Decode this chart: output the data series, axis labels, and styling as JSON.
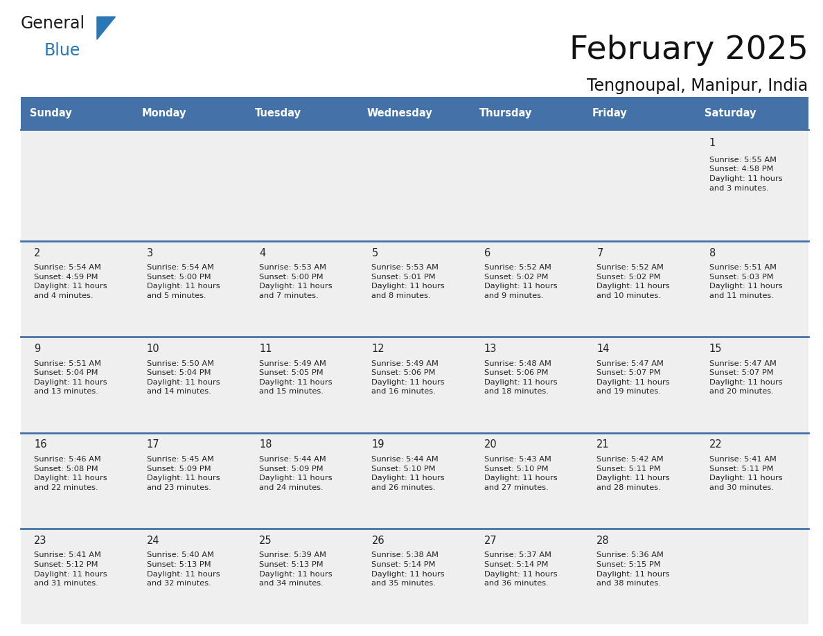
{
  "title": "February 2025",
  "subtitle": "Tengnoupal, Manipur, India",
  "header_bg": "#4472a8",
  "header_text": "#ffffff",
  "day_headers": [
    "Sunday",
    "Monday",
    "Tuesday",
    "Wednesday",
    "Thursday",
    "Friday",
    "Saturday"
  ],
  "row_bg": "#efefef",
  "cell_text_color": "#222222",
  "day_number_color": "#222222",
  "separator_color": "#4472a8",
  "header_fontsize": 10.5,
  "day_num_fontsize": 10.5,
  "info_fontsize": 8.2,
  "title_fontsize": 34,
  "subtitle_fontsize": 17,
  "calendar_data": [
    [
      {
        "day": null,
        "info": null
      },
      {
        "day": null,
        "info": null
      },
      {
        "day": null,
        "info": null
      },
      {
        "day": null,
        "info": null
      },
      {
        "day": null,
        "info": null
      },
      {
        "day": null,
        "info": null
      },
      {
        "day": 1,
        "info": "Sunrise: 5:55 AM\nSunset: 4:58 PM\nDaylight: 11 hours\nand 3 minutes."
      }
    ],
    [
      {
        "day": 2,
        "info": "Sunrise: 5:54 AM\nSunset: 4:59 PM\nDaylight: 11 hours\nand 4 minutes."
      },
      {
        "day": 3,
        "info": "Sunrise: 5:54 AM\nSunset: 5:00 PM\nDaylight: 11 hours\nand 5 minutes."
      },
      {
        "day": 4,
        "info": "Sunrise: 5:53 AM\nSunset: 5:00 PM\nDaylight: 11 hours\nand 7 minutes."
      },
      {
        "day": 5,
        "info": "Sunrise: 5:53 AM\nSunset: 5:01 PM\nDaylight: 11 hours\nand 8 minutes."
      },
      {
        "day": 6,
        "info": "Sunrise: 5:52 AM\nSunset: 5:02 PM\nDaylight: 11 hours\nand 9 minutes."
      },
      {
        "day": 7,
        "info": "Sunrise: 5:52 AM\nSunset: 5:02 PM\nDaylight: 11 hours\nand 10 minutes."
      },
      {
        "day": 8,
        "info": "Sunrise: 5:51 AM\nSunset: 5:03 PM\nDaylight: 11 hours\nand 11 minutes."
      }
    ],
    [
      {
        "day": 9,
        "info": "Sunrise: 5:51 AM\nSunset: 5:04 PM\nDaylight: 11 hours\nand 13 minutes."
      },
      {
        "day": 10,
        "info": "Sunrise: 5:50 AM\nSunset: 5:04 PM\nDaylight: 11 hours\nand 14 minutes."
      },
      {
        "day": 11,
        "info": "Sunrise: 5:49 AM\nSunset: 5:05 PM\nDaylight: 11 hours\nand 15 minutes."
      },
      {
        "day": 12,
        "info": "Sunrise: 5:49 AM\nSunset: 5:06 PM\nDaylight: 11 hours\nand 16 minutes."
      },
      {
        "day": 13,
        "info": "Sunrise: 5:48 AM\nSunset: 5:06 PM\nDaylight: 11 hours\nand 18 minutes."
      },
      {
        "day": 14,
        "info": "Sunrise: 5:47 AM\nSunset: 5:07 PM\nDaylight: 11 hours\nand 19 minutes."
      },
      {
        "day": 15,
        "info": "Sunrise: 5:47 AM\nSunset: 5:07 PM\nDaylight: 11 hours\nand 20 minutes."
      }
    ],
    [
      {
        "day": 16,
        "info": "Sunrise: 5:46 AM\nSunset: 5:08 PM\nDaylight: 11 hours\nand 22 minutes."
      },
      {
        "day": 17,
        "info": "Sunrise: 5:45 AM\nSunset: 5:09 PM\nDaylight: 11 hours\nand 23 minutes."
      },
      {
        "day": 18,
        "info": "Sunrise: 5:44 AM\nSunset: 5:09 PM\nDaylight: 11 hours\nand 24 minutes."
      },
      {
        "day": 19,
        "info": "Sunrise: 5:44 AM\nSunset: 5:10 PM\nDaylight: 11 hours\nand 26 minutes."
      },
      {
        "day": 20,
        "info": "Sunrise: 5:43 AM\nSunset: 5:10 PM\nDaylight: 11 hours\nand 27 minutes."
      },
      {
        "day": 21,
        "info": "Sunrise: 5:42 AM\nSunset: 5:11 PM\nDaylight: 11 hours\nand 28 minutes."
      },
      {
        "day": 22,
        "info": "Sunrise: 5:41 AM\nSunset: 5:11 PM\nDaylight: 11 hours\nand 30 minutes."
      }
    ],
    [
      {
        "day": 23,
        "info": "Sunrise: 5:41 AM\nSunset: 5:12 PM\nDaylight: 11 hours\nand 31 minutes."
      },
      {
        "day": 24,
        "info": "Sunrise: 5:40 AM\nSunset: 5:13 PM\nDaylight: 11 hours\nand 32 minutes."
      },
      {
        "day": 25,
        "info": "Sunrise: 5:39 AM\nSunset: 5:13 PM\nDaylight: 11 hours\nand 34 minutes."
      },
      {
        "day": 26,
        "info": "Sunrise: 5:38 AM\nSunset: 5:14 PM\nDaylight: 11 hours\nand 35 minutes."
      },
      {
        "day": 27,
        "info": "Sunrise: 5:37 AM\nSunset: 5:14 PM\nDaylight: 11 hours\nand 36 minutes."
      },
      {
        "day": 28,
        "info": "Sunrise: 5:36 AM\nSunset: 5:15 PM\nDaylight: 11 hours\nand 38 minutes."
      },
      {
        "day": null,
        "info": null
      }
    ]
  ],
  "logo_general_color": "#1a1a1a",
  "logo_blue_color": "#2878b8",
  "logo_triangle_color": "#2878b8",
  "fig_width": 11.88,
  "fig_height": 9.18,
  "dpi": 100
}
